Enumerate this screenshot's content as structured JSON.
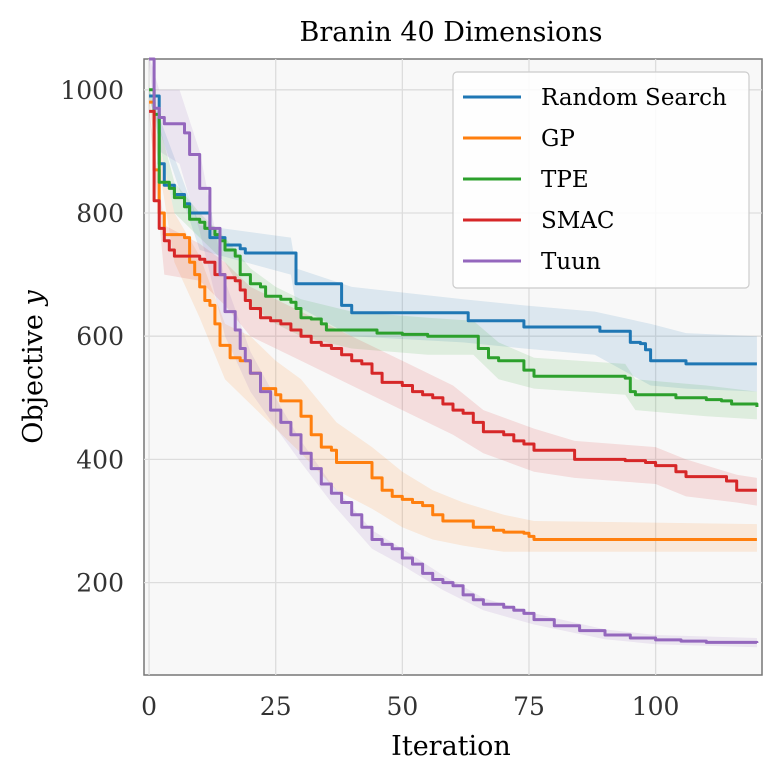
{
  "chart_data": {
    "type": "line",
    "title": "Branin 40 Dimensions",
    "xlabel": "Iteration",
    "ylabel": "Objective y",
    "xlim": [
      -1,
      121
    ],
    "ylim": [
      50,
      1050
    ],
    "xticks": [
      0,
      25,
      50,
      75,
      100
    ],
    "yticks": [
      200,
      400,
      600,
      800,
      1000
    ],
    "grid": true,
    "legend_position": "top-right",
    "series": [
      {
        "name": "Random Search",
        "color": "#1f77b4",
        "points": [
          [
            0,
            990
          ],
          [
            2,
            880
          ],
          [
            3,
            845
          ],
          [
            5,
            830
          ],
          [
            7,
            815
          ],
          [
            8,
            800
          ],
          [
            12,
            760
          ],
          [
            15,
            748
          ],
          [
            18,
            742
          ],
          [
            19,
            735
          ],
          [
            28,
            735
          ],
          [
            29,
            685
          ],
          [
            37,
            685
          ],
          [
            38,
            650
          ],
          [
            40,
            638
          ],
          [
            62,
            638
          ],
          [
            63,
            625
          ],
          [
            73,
            625
          ],
          [
            74,
            615
          ],
          [
            88,
            615
          ],
          [
            89,
            608
          ],
          [
            94,
            608
          ],
          [
            95,
            590
          ],
          [
            97,
            588
          ],
          [
            98,
            578
          ],
          [
            99,
            560
          ],
          [
            105,
            560
          ],
          [
            106,
            555
          ],
          [
            120,
            555
          ]
        ],
        "band": [
          [
            0,
            985,
            1000
          ],
          [
            10,
            740,
            780
          ],
          [
            28,
            700,
            760
          ],
          [
            29,
            650,
            710
          ],
          [
            40,
            600,
            680
          ],
          [
            62,
            590,
            660
          ],
          [
            74,
            580,
            650
          ],
          [
            88,
            570,
            640
          ],
          [
            99,
            520,
            620
          ],
          [
            106,
            515,
            605
          ],
          [
            120,
            510,
            600
          ]
        ]
      },
      {
        "name": "GP",
        "color": "#ff7f0e",
        "points": [
          [
            0,
            980
          ],
          [
            1,
            870
          ],
          [
            2,
            800
          ],
          [
            3,
            765
          ],
          [
            7,
            760
          ],
          [
            8,
            720
          ],
          [
            9,
            700
          ],
          [
            10,
            680
          ],
          [
            11,
            658
          ],
          [
            12,
            650
          ],
          [
            13,
            620
          ],
          [
            14,
            585
          ],
          [
            16,
            565
          ],
          [
            18,
            560
          ],
          [
            20,
            540
          ],
          [
            22,
            515
          ],
          [
            24,
            515
          ],
          [
            25,
            505
          ],
          [
            26,
            495
          ],
          [
            29,
            495
          ],
          [
            30,
            470
          ],
          [
            32,
            440
          ],
          [
            34,
            420
          ],
          [
            36,
            415
          ],
          [
            37,
            395
          ],
          [
            43,
            395
          ],
          [
            44,
            370
          ],
          [
            46,
            350
          ],
          [
            48,
            340
          ],
          [
            50,
            335
          ],
          [
            52,
            330
          ],
          [
            54,
            325
          ],
          [
            56,
            310
          ],
          [
            58,
            300
          ],
          [
            62,
            300
          ],
          [
            64,
            290
          ],
          [
            68,
            285
          ],
          [
            70,
            282
          ],
          [
            74,
            280
          ],
          [
            75,
            275
          ],
          [
            76,
            270
          ],
          [
            120,
            270
          ]
        ],
        "band": [
          [
            0,
            975,
            985
          ],
          [
            5,
            720,
            800
          ],
          [
            10,
            630,
            730
          ],
          [
            15,
            530,
            620
          ],
          [
            20,
            490,
            600
          ],
          [
            25,
            450,
            560
          ],
          [
            30,
            410,
            530
          ],
          [
            37,
            350,
            460
          ],
          [
            44,
            320,
            420
          ],
          [
            50,
            290,
            380
          ],
          [
            56,
            270,
            350
          ],
          [
            62,
            260,
            330
          ],
          [
            70,
            250,
            310
          ],
          [
            76,
            250,
            300
          ],
          [
            120,
            250,
            295
          ]
        ]
      },
      {
        "name": "TPE",
        "color": "#2ca02c",
        "points": [
          [
            0,
            1000
          ],
          [
            1,
            960
          ],
          [
            2,
            850
          ],
          [
            4,
            840
          ],
          [
            5,
            825
          ],
          [
            7,
            810
          ],
          [
            8,
            790
          ],
          [
            10,
            785
          ],
          [
            11,
            775
          ],
          [
            13,
            765
          ],
          [
            14,
            755
          ],
          [
            15,
            740
          ],
          [
            17,
            730
          ],
          [
            18,
            700
          ],
          [
            20,
            685
          ],
          [
            22,
            680
          ],
          [
            23,
            665
          ],
          [
            26,
            660
          ],
          [
            28,
            655
          ],
          [
            29,
            645
          ],
          [
            30,
            630
          ],
          [
            32,
            628
          ],
          [
            34,
            620
          ],
          [
            35,
            610
          ],
          [
            40,
            610
          ],
          [
            45,
            605
          ],
          [
            50,
            603
          ],
          [
            55,
            600
          ],
          [
            64,
            600
          ],
          [
            65,
            580
          ],
          [
            67,
            565
          ],
          [
            69,
            560
          ],
          [
            73,
            560
          ],
          [
            74,
            545
          ],
          [
            76,
            535
          ],
          [
            85,
            535
          ],
          [
            94,
            532
          ],
          [
            95,
            510
          ],
          [
            96,
            505
          ],
          [
            103,
            505
          ],
          [
            104,
            500
          ],
          [
            110,
            497
          ],
          [
            113,
            495
          ],
          [
            115,
            490
          ],
          [
            120,
            485
          ]
        ],
        "band": [
          [
            0,
            990,
            1005
          ],
          [
            5,
            800,
            850
          ],
          [
            10,
            760,
            800
          ],
          [
            15,
            720,
            760
          ],
          [
            20,
            650,
            710
          ],
          [
            25,
            620,
            680
          ],
          [
            30,
            600,
            660
          ],
          [
            40,
            580,
            640
          ],
          [
            55,
            570,
            630
          ],
          [
            64,
            570,
            625
          ],
          [
            69,
            530,
            590
          ],
          [
            76,
            515,
            565
          ],
          [
            94,
            505,
            555
          ],
          [
            96,
            480,
            530
          ],
          [
            110,
            470,
            520
          ],
          [
            120,
            465,
            510
          ]
        ]
      },
      {
        "name": "SMAC",
        "color": "#d62728",
        "points": [
          [
            0,
            965
          ],
          [
            1,
            820
          ],
          [
            2,
            775
          ],
          [
            3,
            755
          ],
          [
            4,
            740
          ],
          [
            5,
            730
          ],
          [
            10,
            725
          ],
          [
            11,
            720
          ],
          [
            13,
            700
          ],
          [
            15,
            695
          ],
          [
            17,
            690
          ],
          [
            18,
            675
          ],
          [
            19,
            658
          ],
          [
            20,
            645
          ],
          [
            22,
            630
          ],
          [
            24,
            625
          ],
          [
            26,
            620
          ],
          [
            28,
            610
          ],
          [
            30,
            600
          ],
          [
            32,
            590
          ],
          [
            34,
            585
          ],
          [
            36,
            580
          ],
          [
            38,
            570
          ],
          [
            40,
            560
          ],
          [
            42,
            555
          ],
          [
            44,
            540
          ],
          [
            46,
            525
          ],
          [
            50,
            520
          ],
          [
            52,
            510
          ],
          [
            54,
            505
          ],
          [
            56,
            500
          ],
          [
            58,
            490
          ],
          [
            60,
            480
          ],
          [
            62,
            475
          ],
          [
            64,
            460
          ],
          [
            66,
            445
          ],
          [
            70,
            440
          ],
          [
            72,
            430
          ],
          [
            74,
            425
          ],
          [
            76,
            415
          ],
          [
            82,
            415
          ],
          [
            84,
            400
          ],
          [
            92,
            400
          ],
          [
            94,
            398
          ],
          [
            98,
            395
          ],
          [
            100,
            390
          ],
          [
            104,
            380
          ],
          [
            106,
            372
          ],
          [
            112,
            372
          ],
          [
            114,
            365
          ],
          [
            116,
            350
          ],
          [
            120,
            350
          ]
        ],
        "band": [
          [
            0,
            960,
            970
          ],
          [
            3,
            700,
            780
          ],
          [
            10,
            690,
            750
          ],
          [
            15,
            650,
            720
          ],
          [
            20,
            600,
            680
          ],
          [
            30,
            560,
            640
          ],
          [
            40,
            520,
            600
          ],
          [
            50,
            480,
            560
          ],
          [
            60,
            440,
            520
          ],
          [
            66,
            410,
            480
          ],
          [
            76,
            380,
            450
          ],
          [
            84,
            370,
            430
          ],
          [
            100,
            360,
            420
          ],
          [
            106,
            340,
            400
          ],
          [
            116,
            330,
            375
          ],
          [
            120,
            325,
            370
          ]
        ]
      },
      {
        "name": "Tuun",
        "color": "#9467bd",
        "points": [
          [
            0,
            1050
          ],
          [
            1,
            970
          ],
          [
            2,
            955
          ],
          [
            3,
            945
          ],
          [
            6,
            945
          ],
          [
            7,
            930
          ],
          [
            8,
            895
          ],
          [
            10,
            840
          ],
          [
            12,
            775
          ],
          [
            14,
            700
          ],
          [
            15,
            640
          ],
          [
            17,
            610
          ],
          [
            18,
            580
          ],
          [
            19,
            560
          ],
          [
            20,
            540
          ],
          [
            22,
            510
          ],
          [
            24,
            480
          ],
          [
            26,
            460
          ],
          [
            28,
            440
          ],
          [
            30,
            410
          ],
          [
            32,
            385
          ],
          [
            34,
            360
          ],
          [
            36,
            345
          ],
          [
            38,
            330
          ],
          [
            40,
            310
          ],
          [
            42,
            290
          ],
          [
            44,
            270
          ],
          [
            46,
            262
          ],
          [
            48,
            255
          ],
          [
            50,
            240
          ],
          [
            52,
            230
          ],
          [
            54,
            215
          ],
          [
            56,
            205
          ],
          [
            58,
            200
          ],
          [
            60,
            195
          ],
          [
            62,
            180
          ],
          [
            64,
            172
          ],
          [
            66,
            165
          ],
          [
            70,
            160
          ],
          [
            72,
            155
          ],
          [
            74,
            150
          ],
          [
            76,
            140
          ],
          [
            80,
            130
          ],
          [
            85,
            122
          ],
          [
            90,
            115
          ],
          [
            95,
            110
          ],
          [
            100,
            107
          ],
          [
            105,
            105
          ],
          [
            110,
            103
          ],
          [
            120,
            102
          ]
        ],
        "band": [
          [
            0,
            1040,
            1055
          ],
          [
            2,
            900,
            1000
          ],
          [
            6,
            880,
            1000
          ],
          [
            10,
            770,
            900
          ],
          [
            15,
            600,
            690
          ],
          [
            20,
            510,
            575
          ],
          [
            26,
            440,
            485
          ],
          [
            30,
            395,
            430
          ],
          [
            36,
            330,
            360
          ],
          [
            44,
            255,
            285
          ],
          [
            50,
            228,
            255
          ],
          [
            58,
            188,
            212
          ],
          [
            66,
            155,
            175
          ],
          [
            76,
            132,
            150
          ],
          [
            90,
            108,
            124
          ],
          [
            100,
            100,
            115
          ],
          [
            120,
            95,
            110
          ]
        ]
      }
    ]
  }
}
